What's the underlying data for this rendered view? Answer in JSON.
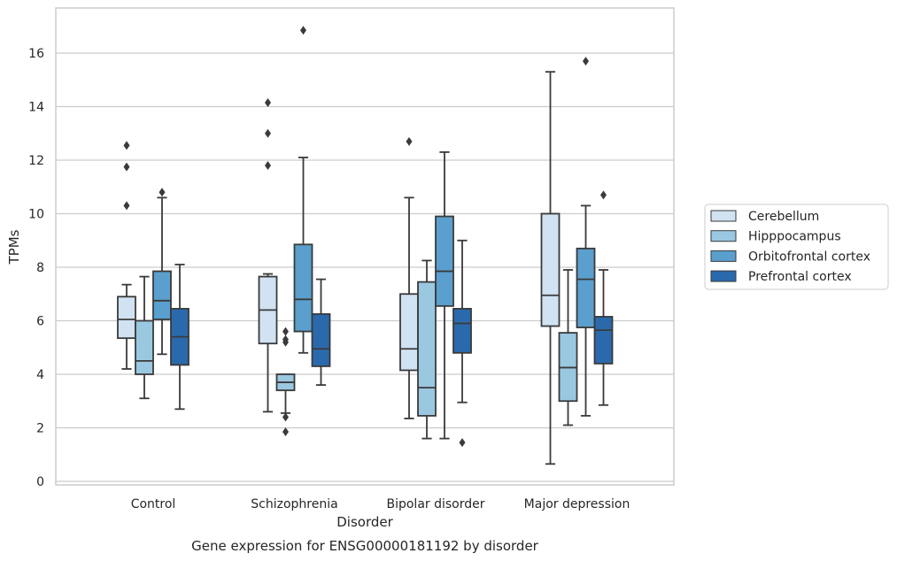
{
  "chart_data": {
    "type": "boxplot",
    "caption": "Gene expression for ENSG00000181192 by disorder",
    "xlabel": "Disorder",
    "ylabel": "TPMs",
    "ylim": [
      -0.1,
      17.6
    ],
    "yticks": [
      0,
      2,
      4,
      6,
      8,
      10,
      12,
      14,
      16
    ],
    "grid": "horizontal",
    "legend_position": "right",
    "categories": [
      "Control",
      "Schizophrenia",
      "Bipolar disorder",
      "Major depression"
    ],
    "series": [
      {
        "name": "Cerebellum",
        "color": "#d1e2f2",
        "boxes": [
          {
            "whisker_low": 4.2,
            "q1": 5.35,
            "median": 6.05,
            "q3": 6.9,
            "whisker_high": 7.35,
            "outliers": [
              10.3,
              11.75,
              12.55
            ]
          },
          {
            "whisker_low": 2.6,
            "q1": 5.15,
            "median": 6.4,
            "q3": 7.65,
            "whisker_high": 7.75,
            "outliers": [
              11.8,
              13.0,
              14.15
            ]
          },
          {
            "whisker_low": 2.35,
            "q1": 4.15,
            "median": 4.95,
            "q3": 7.0,
            "whisker_high": 10.6,
            "outliers": [
              12.7
            ]
          },
          {
            "whisker_low": 0.65,
            "q1": 5.8,
            "median": 6.95,
            "q3": 10.0,
            "whisker_high": 15.3,
            "outliers": []
          }
        ]
      },
      {
        "name": "Hipppocampus",
        "color": "#9ac8e0",
        "boxes": [
          {
            "whisker_low": 3.1,
            "q1": 4.0,
            "median": 4.5,
            "q3": 6.0,
            "whisker_high": 7.65,
            "outliers": []
          },
          {
            "whisker_low": 2.55,
            "q1": 3.4,
            "median": 3.7,
            "q3": 4.0,
            "whisker_high": 4.0,
            "outliers": [
              1.85,
              2.4,
              5.2,
              5.3,
              5.6
            ]
          },
          {
            "whisker_low": 1.6,
            "q1": 2.45,
            "median": 3.5,
            "q3": 7.45,
            "whisker_high": 8.25,
            "outliers": []
          },
          {
            "whisker_low": 2.1,
            "q1": 3.0,
            "median": 4.25,
            "q3": 5.55,
            "whisker_high": 7.9,
            "outliers": []
          }
        ]
      },
      {
        "name": "Orbitofrontal cortex",
        "color": "#5a9fce",
        "boxes": [
          {
            "whisker_low": 4.75,
            "q1": 6.05,
            "median": 6.75,
            "q3": 7.85,
            "whisker_high": 10.6,
            "outliers": [
              10.8
            ]
          },
          {
            "whisker_low": 4.8,
            "q1": 5.6,
            "median": 6.8,
            "q3": 8.85,
            "whisker_high": 12.1,
            "outliers": [
              16.85
            ]
          },
          {
            "whisker_low": 1.6,
            "q1": 6.55,
            "median": 7.85,
            "q3": 9.9,
            "whisker_high": 12.3,
            "outliers": []
          },
          {
            "whisker_low": 2.45,
            "q1": 5.75,
            "median": 7.55,
            "q3": 8.7,
            "whisker_high": 10.3,
            "outliers": [
              15.7
            ]
          }
        ]
      },
      {
        "name": "Prefrontal cortex",
        "color": "#2a6aac",
        "boxes": [
          {
            "whisker_low": 2.7,
            "q1": 4.35,
            "median": 5.4,
            "q3": 6.45,
            "whisker_high": 8.1,
            "outliers": []
          },
          {
            "whisker_low": 3.6,
            "q1": 4.3,
            "median": 4.95,
            "q3": 6.25,
            "whisker_high": 7.55,
            "outliers": []
          },
          {
            "whisker_low": 2.95,
            "q1": 4.8,
            "median": 5.9,
            "q3": 6.45,
            "whisker_high": 9.0,
            "outliers": [
              1.45
            ]
          },
          {
            "whisker_low": 2.85,
            "q1": 4.4,
            "median": 5.65,
            "q3": 6.15,
            "whisker_high": 7.9,
            "outliers": [
              10.7
            ]
          }
        ]
      }
    ]
  }
}
